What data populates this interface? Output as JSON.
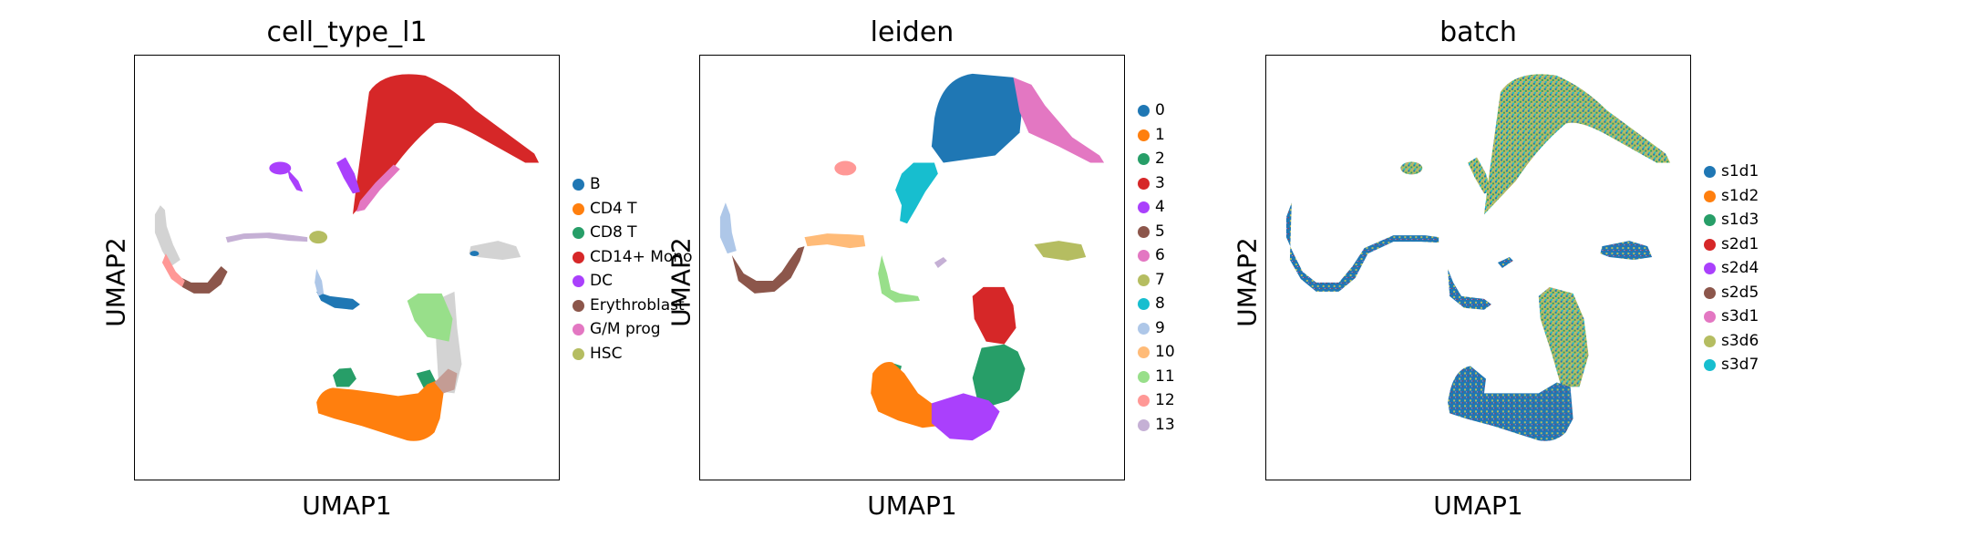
{
  "chart_data": [
    {
      "type": "scatter",
      "title": "cell_type_l1",
      "xlabel": "UMAP1",
      "ylabel": "UMAP2",
      "grid": false,
      "legend_position": "right",
      "legend": [
        {
          "label": "B",
          "color": "#1f77b4"
        },
        {
          "label": "CD4 T",
          "color": "#ff7f0e"
        },
        {
          "label": "CD8 T",
          "color": "#279e68"
        },
        {
          "label": "CD14+ Mono",
          "color": "#d62728"
        },
        {
          "label": "DC",
          "color": "#aa40fc"
        },
        {
          "label": "Erythroblast",
          "color": "#8c564b"
        },
        {
          "label": "G/M prog",
          "color": "#e377c2"
        },
        {
          "label": "HSC",
          "color": "#b5bd61"
        }
      ]
    },
    {
      "type": "scatter",
      "title": "leiden",
      "xlabel": "UMAP1",
      "ylabel": "UMAP2",
      "grid": false,
      "legend_position": "right",
      "legend": [
        {
          "label": "0",
          "color": "#1f77b4"
        },
        {
          "label": "1",
          "color": "#ff7f0e"
        },
        {
          "label": "2",
          "color": "#279e68"
        },
        {
          "label": "3",
          "color": "#d62728"
        },
        {
          "label": "4",
          "color": "#aa40fc"
        },
        {
          "label": "5",
          "color": "#8c564b"
        },
        {
          "label": "6",
          "color": "#e377c2"
        },
        {
          "label": "7",
          "color": "#b5bd61"
        },
        {
          "label": "8",
          "color": "#17becf"
        },
        {
          "label": "9",
          "color": "#aec7e8"
        },
        {
          "label": "10",
          "color": "#ffbb78"
        },
        {
          "label": "11",
          "color": "#98df8a"
        },
        {
          "label": "12",
          "color": "#ff9896"
        },
        {
          "label": "13",
          "color": "#c5b0d5"
        }
      ]
    },
    {
      "type": "scatter",
      "title": "batch",
      "xlabel": "UMAP1",
      "ylabel": "UMAP2",
      "grid": false,
      "legend_position": "right",
      "legend": [
        {
          "label": "s1d1",
          "color": "#1f77b4"
        },
        {
          "label": "s1d2",
          "color": "#ff7f0e"
        },
        {
          "label": "s1d3",
          "color": "#279e68"
        },
        {
          "label": "s2d1",
          "color": "#d62728"
        },
        {
          "label": "s2d4",
          "color": "#aa40fc"
        },
        {
          "label": "s2d5",
          "color": "#8c564b"
        },
        {
          "label": "s3d1",
          "color": "#e377c2"
        },
        {
          "label": "s3d6",
          "color": "#b5bd61"
        },
        {
          "label": "s3d7",
          "color": "#17becf"
        }
      ]
    }
  ]
}
